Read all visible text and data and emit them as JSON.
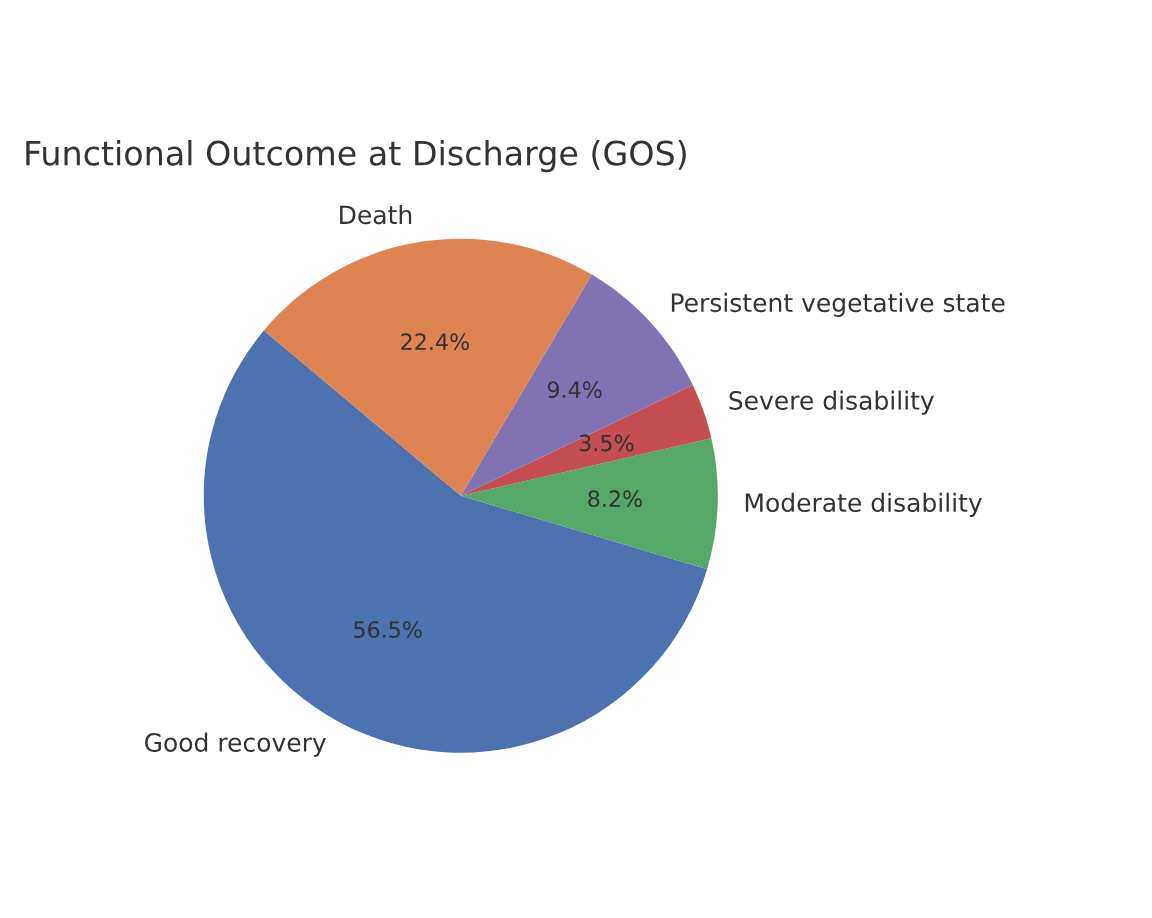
{
  "chart_data": {
    "type": "pie",
    "title": "Functional Outcome at Discharge (GOS)",
    "categories": [
      "Good recovery",
      "Moderate disability",
      "Severe disability",
      "Persistent vegetative state",
      "Death"
    ],
    "values": [
      56.5,
      8.2,
      3.5,
      9.4,
      22.4
    ],
    "colors": [
      "#4c72b0",
      "#55a868",
      "#c44e52",
      "#8172b3",
      "#dd8452"
    ],
    "value_labels": [
      "56.5%",
      "8.2%",
      "3.5%",
      "9.4%",
      "22.4%"
    ]
  }
}
